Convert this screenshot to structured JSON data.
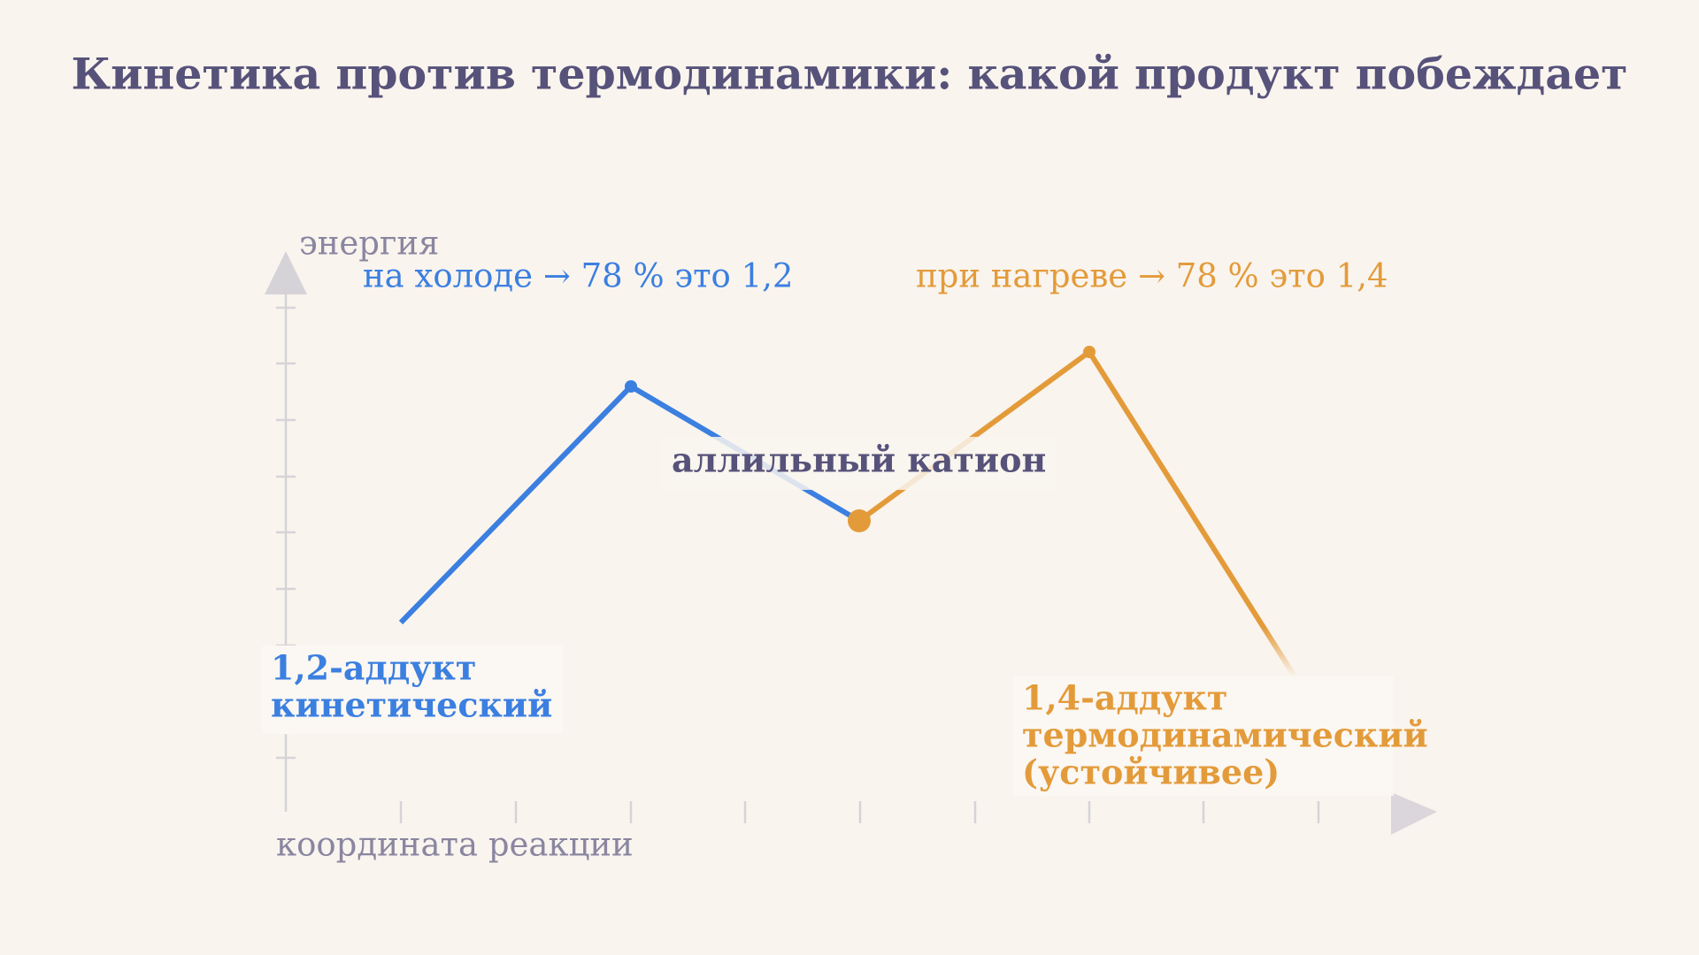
{
  "title": "Кинетика против термодинамики: какой продукт побеждает",
  "axes": {
    "y_label": "энергия",
    "x_label": "координата реакции"
  },
  "conditions": {
    "cold": "на холоде → 78 % это 1,2",
    "hot": "при нагреве → 78 % это 1,4"
  },
  "intermediate": "аллильный катион",
  "product_12": {
    "lines": [
      "1,2-аддукт",
      "кинетический"
    ]
  },
  "product_14": {
    "lines": [
      "1,4-аддукт",
      "термодинамический",
      "(устойчивее)"
    ]
  }
}
